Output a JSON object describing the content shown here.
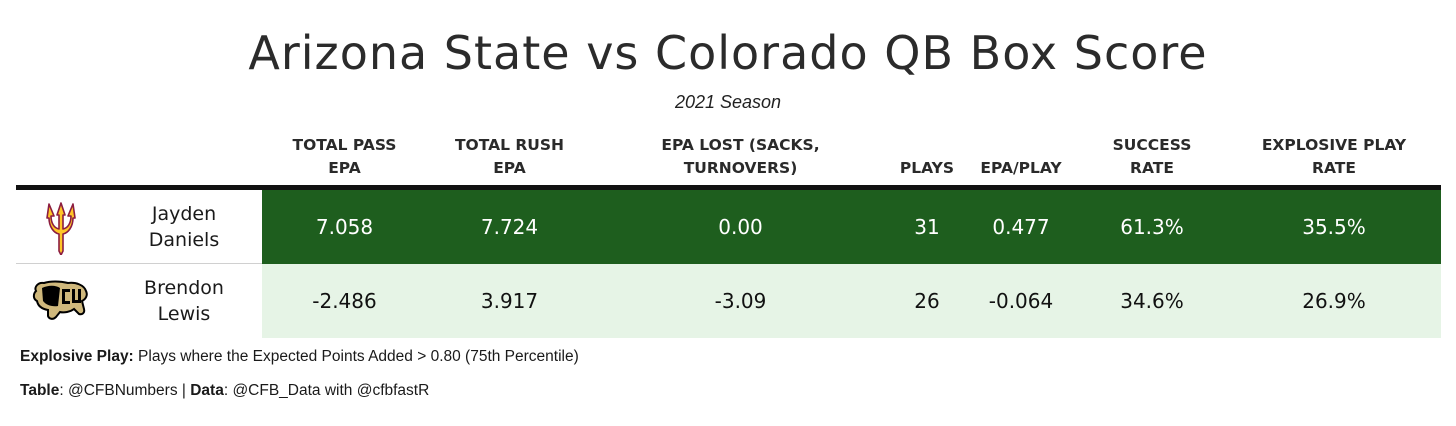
{
  "title": "Arizona State vs Colorado QB Box Score",
  "subtitle": "2021 Season",
  "columns": [
    {
      "line1": "TOTAL PASS",
      "line2": "EPA"
    },
    {
      "line1": "TOTAL RUSH",
      "line2": "EPA"
    },
    {
      "line1": "EPA LOST (SACKS,",
      "line2": "TURNOVERS)"
    },
    {
      "line1": "",
      "line2": "PLAYS"
    },
    {
      "line1": "",
      "line2": "EPA/PLAY"
    },
    {
      "line1": "SUCCESS",
      "line2": "RATE"
    },
    {
      "line1": "EXPLOSIVE PLAY",
      "line2": "RATE"
    }
  ],
  "rows": [
    {
      "team_logo": "pitchfork-logo",
      "name_line1": "Jayden",
      "name_line2": "Daniels",
      "pass_epa": "7.058",
      "rush_epa": "7.724",
      "epa_lost": "0.00",
      "plays": "31",
      "epa_per_play": "0.477",
      "success_rate": "61.3%",
      "explosive_rate": "35.5%"
    },
    {
      "team_logo": "buffalo-logo",
      "name_line1": "Brendon",
      "name_line2": "Lewis",
      "pass_epa": "-2.486",
      "rush_epa": "3.917",
      "epa_lost": "-3.09",
      "plays": "26",
      "epa_per_play": "-0.064",
      "success_rate": "34.6%",
      "explosive_rate": "26.9%"
    }
  ],
  "footnotes": {
    "explosive_label": "Explosive Play:",
    "explosive_text": " Plays where the Expected Points Added > 0.80 (75th Percentile)",
    "table_label": "Table",
    "table_text": ": @CFBNumbers | ",
    "data_label": "Data",
    "data_text": ": @CFB_Data with @cfbfastR"
  },
  "colors": {
    "row1_fill": "#1e5e1e",
    "row2_fill": "#e6f4e6",
    "asu_maroon": "#8c1d40",
    "asu_gold": "#ffc627",
    "cu_gold": "#cfb87c",
    "cu_black": "#000000"
  }
}
